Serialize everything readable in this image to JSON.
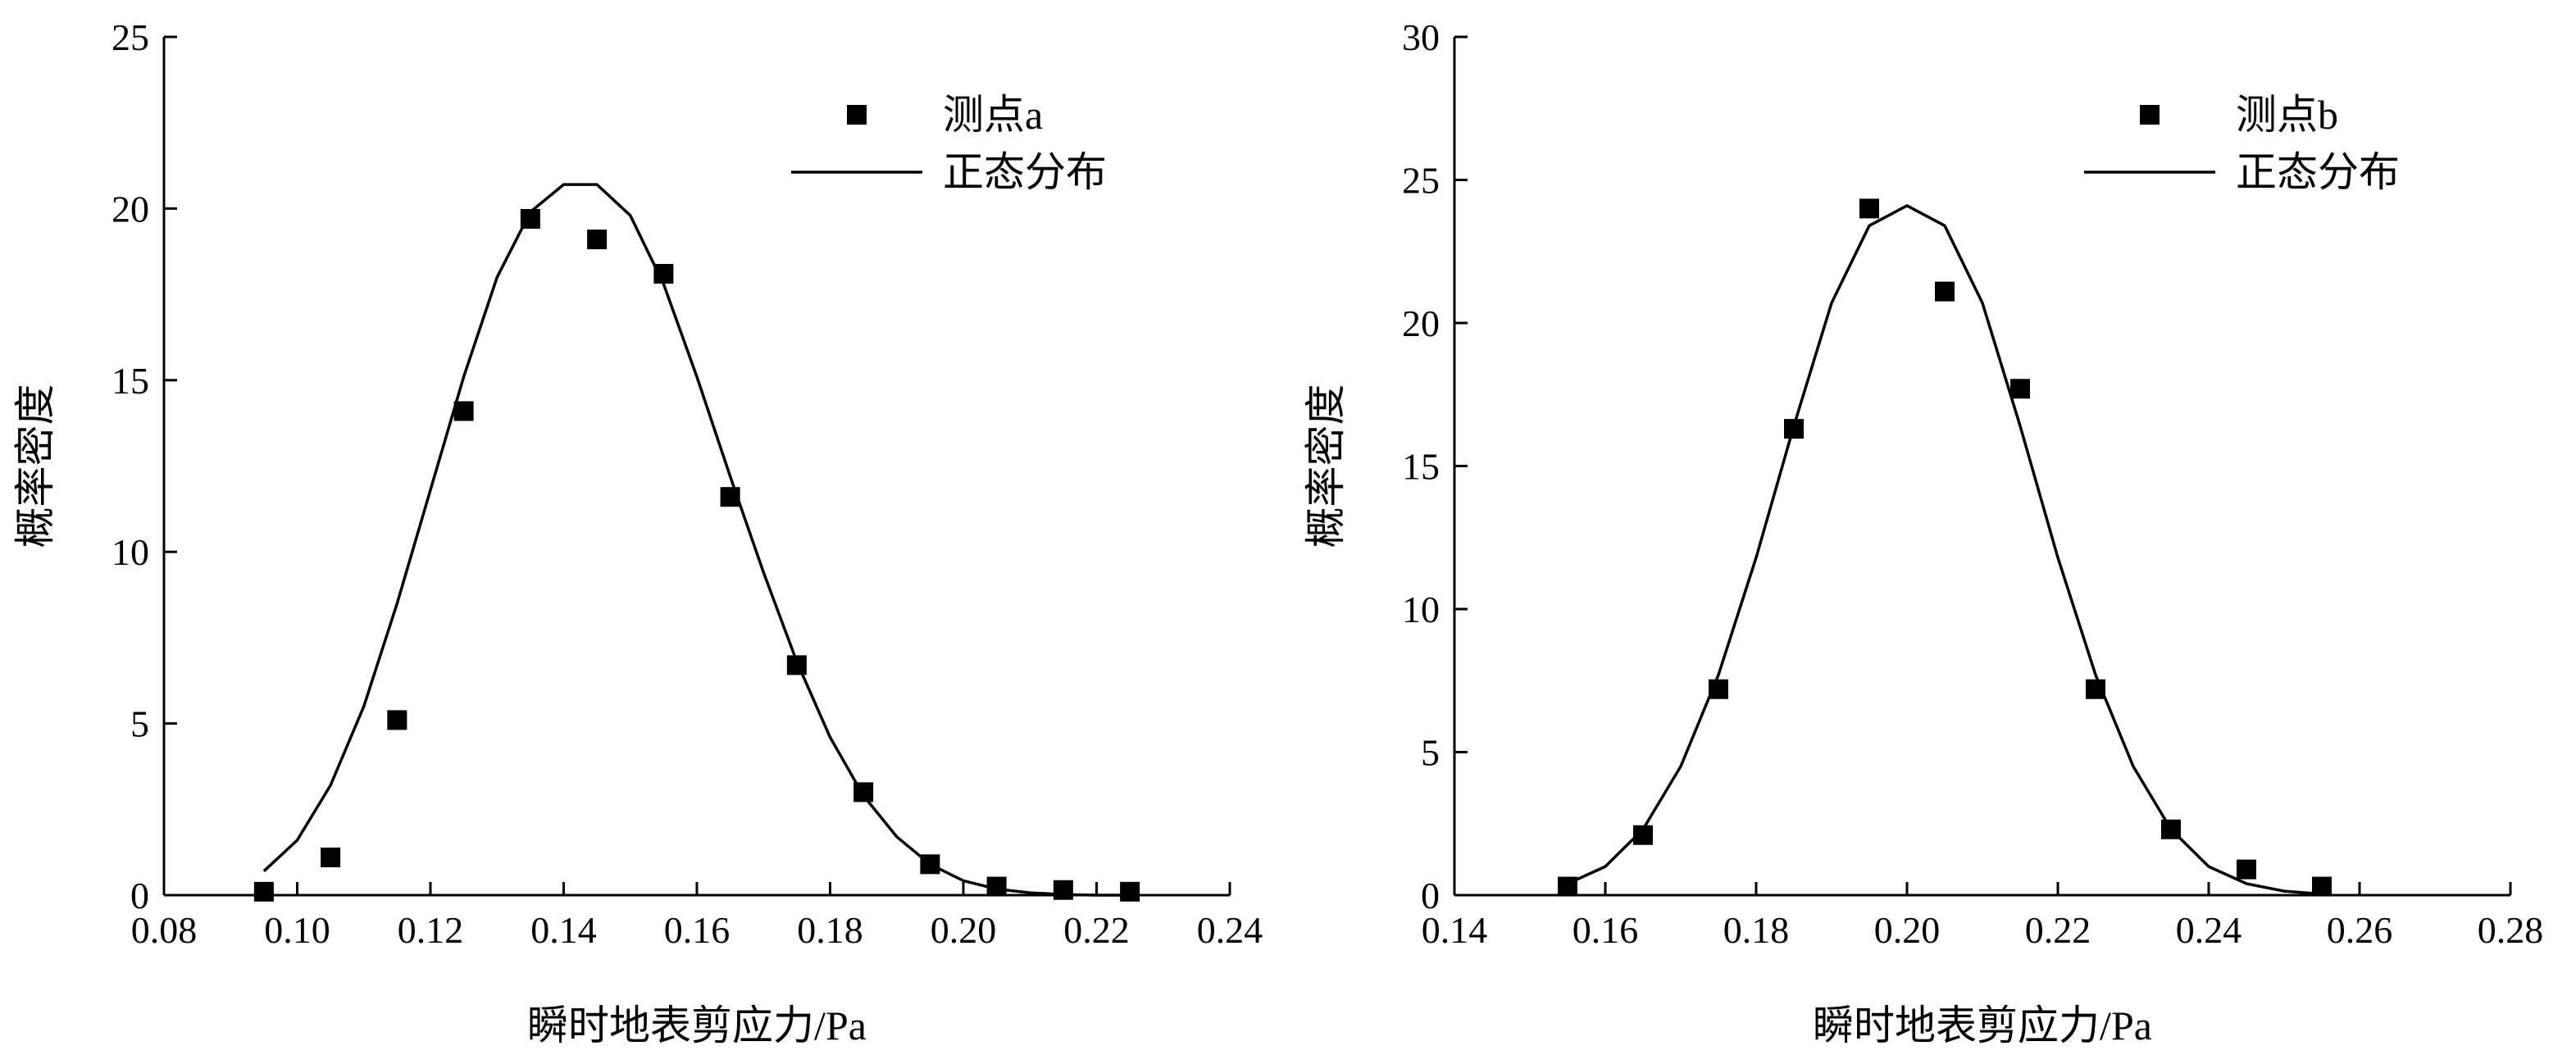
{
  "chart_data": [
    {
      "type": "scatter",
      "xlabel": "瞬时地表剪应力/Pa",
      "ylabel": "概率密度",
      "xlim": [
        0.08,
        0.24
      ],
      "ylim": [
        0,
        25
      ],
      "xticks": [
        0.08,
        0.1,
        0.12,
        0.14,
        0.16,
        0.18,
        0.2,
        0.22,
        0.24
      ],
      "xtick_labels": [
        "0.08",
        "0.10",
        "0.12",
        "0.14",
        "0.16",
        "0.18",
        "0.20",
        "0.22",
        "0.24"
      ],
      "yticks": [
        0,
        5,
        10,
        15,
        20,
        25
      ],
      "ytick_labels": [
        "0",
        "5",
        "10",
        "15",
        "20",
        "25"
      ],
      "legend_position": "top-right",
      "grid": false,
      "series": [
        {
          "name": "测点a",
          "kind": "points",
          "color": "#000000",
          "x": [
            0.095,
            0.105,
            0.115,
            0.125,
            0.135,
            0.145,
            0.155,
            0.165,
            0.175,
            0.185,
            0.195,
            0.205,
            0.215,
            0.225
          ],
          "y": [
            0.1,
            1.1,
            5.1,
            14.1,
            19.7,
            19.1,
            18.1,
            11.6,
            6.7,
            3.0,
            0.9,
            0.25,
            0.15,
            0.1
          ]
        },
        {
          "name": "正态分布",
          "kind": "curve",
          "color": "#000000",
          "x": [
            0.095,
            0.1,
            0.105,
            0.11,
            0.115,
            0.12,
            0.125,
            0.13,
            0.135,
            0.14,
            0.145,
            0.15,
            0.155,
            0.16,
            0.165,
            0.17,
            0.175,
            0.18,
            0.185,
            0.19,
            0.195,
            0.2,
            0.205,
            0.21,
            0.215,
            0.22,
            0.225
          ],
          "y": [
            0.7,
            1.6,
            3.2,
            5.5,
            8.5,
            11.8,
            15.1,
            18.0,
            19.9,
            20.7,
            20.7,
            19.8,
            17.8,
            15.1,
            12.2,
            9.4,
            6.8,
            4.6,
            2.9,
            1.7,
            0.9,
            0.42,
            0.18,
            0.07,
            0.02,
            0.0,
            0.0
          ]
        }
      ]
    },
    {
      "type": "scatter",
      "xlabel": "瞬时地表剪应力/Pa",
      "ylabel": "概率密度",
      "xlim": [
        0.14,
        0.28
      ],
      "ylim": [
        0,
        30
      ],
      "xticks": [
        0.14,
        0.16,
        0.18,
        0.2,
        0.22,
        0.24,
        0.26,
        0.28
      ],
      "xtick_labels": [
        "0.14",
        "0.16",
        "0.18",
        "0.20",
        "0.22",
        "0.24",
        "0.26",
        "0.28"
      ],
      "yticks": [
        0,
        5,
        10,
        15,
        20,
        25,
        30
      ],
      "ytick_labels": [
        "0",
        "5",
        "10",
        "15",
        "20",
        "25",
        "30"
      ],
      "legend_position": "top-right",
      "grid": false,
      "series": [
        {
          "name": "测点b",
          "kind": "points",
          "color": "#000000",
          "x": [
            0.155,
            0.165,
            0.175,
            0.185,
            0.195,
            0.205,
            0.215,
            0.225,
            0.235,
            0.245,
            0.255
          ],
          "y": [
            0.3,
            2.1,
            7.2,
            16.3,
            24.0,
            21.1,
            17.7,
            7.2,
            2.3,
            0.9,
            0.3
          ]
        },
        {
          "name": "正态分布",
          "kind": "curve",
          "color": "#000000",
          "x": [
            0.155,
            0.16,
            0.165,
            0.17,
            0.175,
            0.18,
            0.185,
            0.19,
            0.195,
            0.2,
            0.205,
            0.21,
            0.215,
            0.22,
            0.225,
            0.23,
            0.235,
            0.24,
            0.245,
            0.25,
            0.255
          ],
          "y": [
            0.4,
            1.0,
            2.3,
            4.5,
            7.7,
            11.8,
            16.4,
            20.7,
            23.4,
            24.1,
            23.4,
            20.7,
            16.4,
            11.8,
            7.7,
            4.5,
            2.3,
            1.0,
            0.4,
            0.14,
            0.04
          ]
        }
      ]
    }
  ]
}
